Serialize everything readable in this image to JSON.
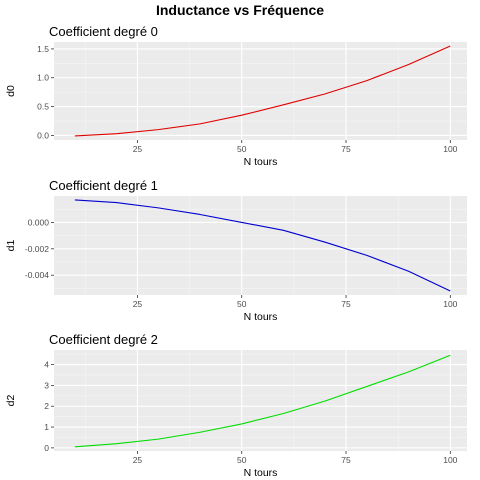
{
  "figure_title": "Inductance vs Fréquence",
  "chart_data": [
    {
      "type": "line",
      "title": "Coefficient degré 0",
      "xlabel": "N tours",
      "ylabel": "d0",
      "color": "#e00000",
      "xlim": [
        5,
        104
      ],
      "ylim": [
        -0.08,
        1.62
      ],
      "x_ticks": [
        25,
        50,
        75,
        100
      ],
      "y_ticks": [
        0.0,
        0.5,
        1.0,
        1.5
      ],
      "y_tick_labels": [
        "0.0",
        "0.5",
        "1.0",
        "1.5"
      ],
      "grid": true,
      "x": [
        10,
        20,
        30,
        40,
        50,
        60,
        70,
        80,
        90,
        100
      ],
      "values": [
        -0.01,
        0.03,
        0.1,
        0.2,
        0.35,
        0.53,
        0.72,
        0.95,
        1.23,
        1.55
      ]
    },
    {
      "type": "line",
      "title": "Coefficient degré 1",
      "xlabel": "N tours",
      "ylabel": "d1",
      "color": "#0000d0",
      "xlim": [
        5,
        104
      ],
      "ylim": [
        -0.0055,
        0.002
      ],
      "x_ticks": [
        25,
        50,
        75,
        100
      ],
      "y_ticks": [
        0.0,
        -0.002,
        -0.004
      ],
      "y_tick_labels": [
        "0.000",
        "-0.002",
        "-0.004"
      ],
      "grid": true,
      "x": [
        10,
        20,
        30,
        40,
        50,
        60,
        70,
        80,
        90,
        100
      ],
      "values": [
        0.0017,
        0.0015,
        0.0011,
        0.0006,
        0.0,
        -0.0006,
        -0.0015,
        -0.0025,
        -0.0037,
        -0.0052
      ]
    },
    {
      "type": "line",
      "title": "Coefficient degré 2",
      "xlabel": "N tours",
      "ylabel": "d2",
      "color": "#00dd00",
      "xlim": [
        5,
        104
      ],
      "ylim": [
        -0.15,
        4.7
      ],
      "x_ticks": [
        25,
        50,
        75,
        100
      ],
      "y_ticks": [
        0,
        1,
        2,
        3,
        4
      ],
      "y_tick_labels": [
        "0",
        "1",
        "2",
        "3",
        "4"
      ],
      "grid": true,
      "x": [
        10,
        20,
        30,
        40,
        50,
        60,
        70,
        80,
        90,
        100
      ],
      "values": [
        0.05,
        0.2,
        0.42,
        0.75,
        1.15,
        1.65,
        2.25,
        2.95,
        3.65,
        4.45
      ]
    }
  ]
}
